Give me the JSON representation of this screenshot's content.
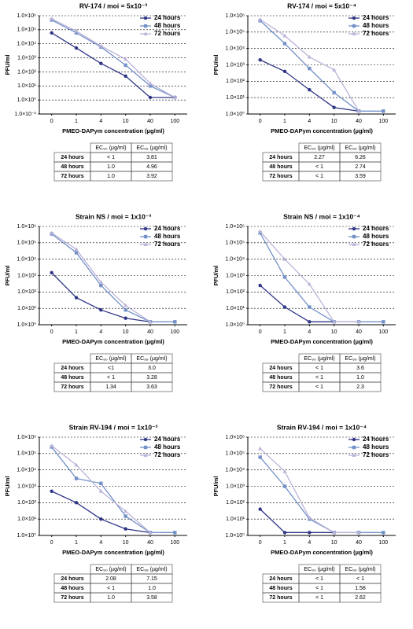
{
  "chart_data": [
    {
      "type": "line",
      "title": "RV-174 / moi = 5x10⁻³",
      "y_label": "PFU/ml",
      "x_label": "PMEO-DAPym concentration (µg/ml)",
      "categories": [
        "0",
        "1",
        "4",
        "10",
        "40",
        "100"
      ],
      "log_scale": true,
      "grid": true,
      "legend": "upper right",
      "ylim": [
        0.1,
        1000000
      ],
      "yticks": [
        {
          "value": 0.1,
          "label": "1.0×10⁻¹"
        },
        {
          "value": 1,
          "label": "1.0×10⁰"
        },
        {
          "value": 10,
          "label": "1.0×10¹"
        },
        {
          "value": 100,
          "label": "1.0×10²"
        },
        {
          "value": 1000,
          "label": "1.0×10³"
        },
        {
          "value": 10000,
          "label": "1.0×10⁴"
        },
        {
          "value": 100000,
          "label": "1.0×10⁵"
        },
        {
          "value": 1000000,
          "label": "1.0×10⁶"
        }
      ],
      "series": [
        {
          "name": "24 hours",
          "color": "#2e3585",
          "values": [
            60000,
            5000,
            400,
            50,
            1.5,
            1.5
          ]
        },
        {
          "name": "48 hours",
          "color": "#7391c8",
          "values": [
            500000,
            60000,
            6000,
            300,
            10,
            1.5
          ]
        },
        {
          "name": "72 hours",
          "color": "#bbb4d8",
          "values": [
            600000,
            80000,
            7000,
            800,
            15,
            1.5
          ]
        }
      ]
    },
    {
      "type": "line",
      "title": "RV-174 / moi = 5x10⁻⁴",
      "y_label": "PFU/ml",
      "x_label": "PMEO-DAPym concentration (µg/ml)",
      "categories": [
        "0",
        "1",
        "4",
        "10",
        "40",
        "100"
      ],
      "log_scale": true,
      "grid": true,
      "legend": "upper right",
      "ylim": [
        1,
        1000000
      ],
      "yticks": [
        {
          "value": 1,
          "label": "1.0×10⁰"
        },
        {
          "value": 10,
          "label": "1.0×10¹"
        },
        {
          "value": 100,
          "label": "1.0×10²"
        },
        {
          "value": 1000,
          "label": "1.0×10³"
        },
        {
          "value": 10000,
          "label": "1.0×10⁴"
        },
        {
          "value": 100000,
          "label": "1.0×10⁵"
        },
        {
          "value": 1000000,
          "label": "1.0×10⁶"
        }
      ],
      "series": [
        {
          "name": "24 hours",
          "color": "#2e3585",
          "values": [
            2000,
            400,
            30,
            2.5,
            1.5,
            null
          ]
        },
        {
          "name": "48 hours",
          "color": "#7391c8",
          "values": [
            500000,
            20000,
            600,
            20,
            1.5,
            1.5
          ]
        },
        {
          "name": "72 hours",
          "color": "#bbb4d8",
          "values": [
            600000,
            60000,
            3000,
            500,
            1.5,
            null
          ]
        }
      ]
    },
    {
      "type": "line",
      "title": "Strain NS / moi = 1x10⁻³",
      "y_label": "PFU/ml",
      "x_label": "PMEO-DAPym concentration (µg/ml)",
      "categories": [
        "0",
        "1",
        "4",
        "10",
        "40",
        "100"
      ],
      "log_scale": true,
      "grid": true,
      "legend": "upper right",
      "ylim": [
        1,
        1000000
      ],
      "yticks": [
        {
          "value": 1,
          "label": "1.0×10⁰"
        },
        {
          "value": 10,
          "label": "1.0×10¹"
        },
        {
          "value": 100,
          "label": "1.0×10²"
        },
        {
          "value": 1000,
          "label": "1.0×10³"
        },
        {
          "value": 10000,
          "label": "1.0×10⁴"
        },
        {
          "value": 100000,
          "label": "1.0×10⁵"
        },
        {
          "value": 1000000,
          "label": "1.0×10⁶"
        }
      ],
      "series": [
        {
          "name": "24 hours",
          "color": "#2e3585",
          "values": [
            1500,
            45,
            8,
            2.5,
            1.5,
            null
          ]
        },
        {
          "name": "48 hours",
          "color": "#7391c8",
          "values": [
            350000,
            25000,
            250,
            8,
            1.5,
            1.5
          ]
        },
        {
          "name": "72 hours",
          "color": "#bbb4d8",
          "values": [
            400000,
            40000,
            400,
            15,
            1.5,
            null
          ]
        }
      ]
    },
    {
      "type": "line",
      "title": "Strain NS / moi = 1x10⁻⁴",
      "y_label": "PFU/ml",
      "x_label": "PMEO-DAPym concentration (µg/ml)",
      "categories": [
        "0",
        "1",
        "4",
        "10",
        "40",
        "100"
      ],
      "log_scale": true,
      "grid": true,
      "legend": "upper right",
      "ylim": [
        1,
        1000000
      ],
      "yticks": [
        {
          "value": 1,
          "label": "1.0×10⁰"
        },
        {
          "value": 10,
          "label": "1.0×10¹"
        },
        {
          "value": 100,
          "label": "1.0×10²"
        },
        {
          "value": 1000,
          "label": "1.0×10³"
        },
        {
          "value": 10000,
          "label": "1.0×10⁴"
        },
        {
          "value": 100000,
          "label": "1.0×10⁵"
        },
        {
          "value": 1000000,
          "label": "1.0×10⁶"
        }
      ],
      "series": [
        {
          "name": "24 hours",
          "color": "#2e3585",
          "values": [
            250,
            12,
            1.5,
            1.5,
            null,
            null
          ]
        },
        {
          "name": "48 hours",
          "color": "#7391c8",
          "values": [
            400000,
            800,
            12,
            1.5,
            1.5,
            1.5
          ]
        },
        {
          "name": "72 hours",
          "color": "#bbb4d8",
          "values": [
            500000,
            10000,
            300,
            1.5,
            1.5,
            null
          ]
        }
      ]
    },
    {
      "type": "line",
      "title": "Strain RV-194 / moi = 1x10⁻³",
      "y_label": "PFU/ml",
      "x_label": "PMEO-DAPym concentration (µg/ml)",
      "categories": [
        "0",
        "1",
        "4",
        "10",
        "40",
        "100"
      ],
      "log_scale": true,
      "grid": true,
      "legend": "upper right",
      "ylim": [
        1,
        1000000
      ],
      "yticks": [
        {
          "value": 1,
          "label": "1.0×10⁰"
        },
        {
          "value": 10,
          "label": "1.0×10¹"
        },
        {
          "value": 100,
          "label": "1.0×10²"
        },
        {
          "value": 1000,
          "label": "1.0×10³"
        },
        {
          "value": 10000,
          "label": "1.0×10⁴"
        },
        {
          "value": 100000,
          "label": "1.0×10⁵"
        },
        {
          "value": 1000000,
          "label": "1.0×10⁶"
        }
      ],
      "series": [
        {
          "name": "24 hours",
          "color": "#2e3585",
          "values": [
            500,
            100,
            10,
            2.5,
            1.5,
            null
          ]
        },
        {
          "name": "48 hours",
          "color": "#7391c8",
          "values": [
            250000,
            3000,
            1500,
            15,
            1.5,
            1.5
          ]
        },
        {
          "name": "72 hours",
          "color": "#bbb4d8",
          "values": [
            300000,
            20000,
            500,
            30,
            1.5,
            null
          ]
        }
      ]
    },
    {
      "type": "line",
      "title": "Strain RV-194 / moi = 1x10⁻⁴",
      "y_label": "PFU/ml",
      "x_label": "PMEO-DAPym concentration (µg/ml)",
      "categories": [
        "0",
        "1",
        "4",
        "10",
        "40",
        "100"
      ],
      "log_scale": true,
      "grid": true,
      "legend": "upper right",
      "ylim": [
        1,
        1000000
      ],
      "yticks": [
        {
          "value": 1,
          "label": "1.0×10⁰"
        },
        {
          "value": 10,
          "label": "1.0×10¹"
        },
        {
          "value": 100,
          "label": "1.0×10²"
        },
        {
          "value": 1000,
          "label": "1.0×10³"
        },
        {
          "value": 10000,
          "label": "1.0×10⁴"
        },
        {
          "value": 100000,
          "label": "1.0×10⁵"
        },
        {
          "value": 1000000,
          "label": "1.0×10⁶"
        }
      ],
      "series": [
        {
          "name": "24 hours",
          "color": "#2e3585",
          "values": [
            40,
            1.5,
            1.5,
            1.5,
            null,
            null
          ]
        },
        {
          "name": "48 hours",
          "color": "#7391c8",
          "values": [
            60000,
            1000,
            10,
            1.5,
            1.5,
            1.5
          ]
        },
        {
          "name": "72 hours",
          "color": "#bbb4d8",
          "values": [
            200000,
            8000,
            12,
            1.5,
            1.5,
            null
          ]
        }
      ]
    }
  ],
  "tables": [
    {
      "header": [
        "EC₉₀ (µg/ml)",
        "EC₉₉ (µg/ml)"
      ],
      "rows": [
        [
          "24 hours",
          "< 1",
          "3.81"
        ],
        [
          "48 hours",
          "1.0",
          "4.96"
        ],
        [
          "72 hours",
          "1.0",
          "3.92"
        ]
      ]
    },
    {
      "header": [
        "EC₉₀ (µg/ml)",
        "EC₉₉ (µg/ml)"
      ],
      "rows": [
        [
          "24 hours",
          "2.27",
          "6.26"
        ],
        [
          "48 hours",
          "< 1",
          "2.74"
        ],
        [
          "72 hours",
          "< 1",
          "3.59"
        ]
      ]
    },
    {
      "header": [
        "EC₉₀ (µg/ml)",
        "EC₉₉ (µg/ml)"
      ],
      "rows": [
        [
          "24 hours",
          "<1",
          "3.0"
        ],
        [
          "48 hours",
          "< 1",
          "3.28"
        ],
        [
          "72 hours",
          "1.34",
          "3.63"
        ]
      ]
    },
    {
      "header": [
        "EC₉₀ (µg/ml)",
        "EC₉₉ (µg/ml)"
      ],
      "rows": [
        [
          "24 hours",
          "< 1",
          "3.6"
        ],
        [
          "48 hours",
          "< 1",
          "1.0"
        ],
        [
          "72 hours",
          "< 1",
          "2.3"
        ]
      ]
    },
    {
      "header": [
        "EC₉₀ (µg/ml)",
        "EC₉₉ (µg/ml)"
      ],
      "rows": [
        [
          "24 hours",
          "2.08",
          "7.15"
        ],
        [
          "48 hours",
          "< 1",
          "1.0"
        ],
        [
          "72 hours",
          "1.0",
          "3.58"
        ]
      ]
    },
    {
      "header": [
        "EC₉₀ (µg/ml)",
        "EC₉₉ (µg/ml)"
      ],
      "rows": [
        [
          "24 hours",
          "< 1",
          "< 1"
        ],
        [
          "48 hours",
          "< 1",
          "1.58"
        ],
        [
          "72 hours",
          "< 1",
          "2.62"
        ]
      ]
    }
  ]
}
